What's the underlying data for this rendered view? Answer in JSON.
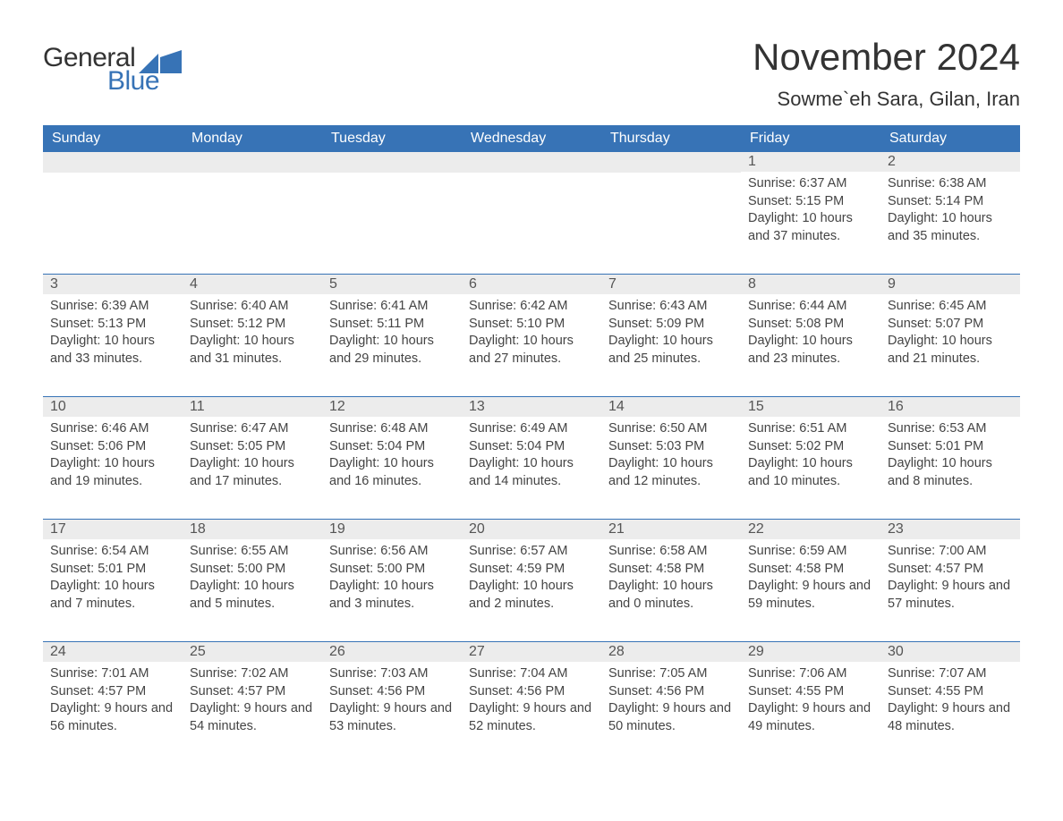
{
  "logo": {
    "text_general": "General",
    "text_blue": "Blue",
    "shape_color": "#3773b6"
  },
  "title": {
    "month": "November 2024",
    "location": "Sowme`eh Sara, Gilan, Iran",
    "month_fontsize": 42,
    "location_fontsize": 22,
    "text_color": "#333333"
  },
  "calendar": {
    "header_bg": "#3773b6",
    "header_text_color": "#ffffff",
    "separator_color": "#3773b6",
    "daynum_bg": "#ececec",
    "day_headers": [
      "Sunday",
      "Monday",
      "Tuesday",
      "Wednesday",
      "Thursday",
      "Friday",
      "Saturday"
    ],
    "weeks": [
      [
        {
          "num": "",
          "sunrise": "",
          "sunset": "",
          "daylight": ""
        },
        {
          "num": "",
          "sunrise": "",
          "sunset": "",
          "daylight": ""
        },
        {
          "num": "",
          "sunrise": "",
          "sunset": "",
          "daylight": ""
        },
        {
          "num": "",
          "sunrise": "",
          "sunset": "",
          "daylight": ""
        },
        {
          "num": "",
          "sunrise": "",
          "sunset": "",
          "daylight": ""
        },
        {
          "num": "1",
          "sunrise": "Sunrise: 6:37 AM",
          "sunset": "Sunset: 5:15 PM",
          "daylight": "Daylight: 10 hours and 37 minutes."
        },
        {
          "num": "2",
          "sunrise": "Sunrise: 6:38 AM",
          "sunset": "Sunset: 5:14 PM",
          "daylight": "Daylight: 10 hours and 35 minutes."
        }
      ],
      [
        {
          "num": "3",
          "sunrise": "Sunrise: 6:39 AM",
          "sunset": "Sunset: 5:13 PM",
          "daylight": "Daylight: 10 hours and 33 minutes."
        },
        {
          "num": "4",
          "sunrise": "Sunrise: 6:40 AM",
          "sunset": "Sunset: 5:12 PM",
          "daylight": "Daylight: 10 hours and 31 minutes."
        },
        {
          "num": "5",
          "sunrise": "Sunrise: 6:41 AM",
          "sunset": "Sunset: 5:11 PM",
          "daylight": "Daylight: 10 hours and 29 minutes."
        },
        {
          "num": "6",
          "sunrise": "Sunrise: 6:42 AM",
          "sunset": "Sunset: 5:10 PM",
          "daylight": "Daylight: 10 hours and 27 minutes."
        },
        {
          "num": "7",
          "sunrise": "Sunrise: 6:43 AM",
          "sunset": "Sunset: 5:09 PM",
          "daylight": "Daylight: 10 hours and 25 minutes."
        },
        {
          "num": "8",
          "sunrise": "Sunrise: 6:44 AM",
          "sunset": "Sunset: 5:08 PM",
          "daylight": "Daylight: 10 hours and 23 minutes."
        },
        {
          "num": "9",
          "sunrise": "Sunrise: 6:45 AM",
          "sunset": "Sunset: 5:07 PM",
          "daylight": "Daylight: 10 hours and 21 minutes."
        }
      ],
      [
        {
          "num": "10",
          "sunrise": "Sunrise: 6:46 AM",
          "sunset": "Sunset: 5:06 PM",
          "daylight": "Daylight: 10 hours and 19 minutes."
        },
        {
          "num": "11",
          "sunrise": "Sunrise: 6:47 AM",
          "sunset": "Sunset: 5:05 PM",
          "daylight": "Daylight: 10 hours and 17 minutes."
        },
        {
          "num": "12",
          "sunrise": "Sunrise: 6:48 AM",
          "sunset": "Sunset: 5:04 PM",
          "daylight": "Daylight: 10 hours and 16 minutes."
        },
        {
          "num": "13",
          "sunrise": "Sunrise: 6:49 AM",
          "sunset": "Sunset: 5:04 PM",
          "daylight": "Daylight: 10 hours and 14 minutes."
        },
        {
          "num": "14",
          "sunrise": "Sunrise: 6:50 AM",
          "sunset": "Sunset: 5:03 PM",
          "daylight": "Daylight: 10 hours and 12 minutes."
        },
        {
          "num": "15",
          "sunrise": "Sunrise: 6:51 AM",
          "sunset": "Sunset: 5:02 PM",
          "daylight": "Daylight: 10 hours and 10 minutes."
        },
        {
          "num": "16",
          "sunrise": "Sunrise: 6:53 AM",
          "sunset": "Sunset: 5:01 PM",
          "daylight": "Daylight: 10 hours and 8 minutes."
        }
      ],
      [
        {
          "num": "17",
          "sunrise": "Sunrise: 6:54 AM",
          "sunset": "Sunset: 5:01 PM",
          "daylight": "Daylight: 10 hours and 7 minutes."
        },
        {
          "num": "18",
          "sunrise": "Sunrise: 6:55 AM",
          "sunset": "Sunset: 5:00 PM",
          "daylight": "Daylight: 10 hours and 5 minutes."
        },
        {
          "num": "19",
          "sunrise": "Sunrise: 6:56 AM",
          "sunset": "Sunset: 5:00 PM",
          "daylight": "Daylight: 10 hours and 3 minutes."
        },
        {
          "num": "20",
          "sunrise": "Sunrise: 6:57 AM",
          "sunset": "Sunset: 4:59 PM",
          "daylight": "Daylight: 10 hours and 2 minutes."
        },
        {
          "num": "21",
          "sunrise": "Sunrise: 6:58 AM",
          "sunset": "Sunset: 4:58 PM",
          "daylight": "Daylight: 10 hours and 0 minutes."
        },
        {
          "num": "22",
          "sunrise": "Sunrise: 6:59 AM",
          "sunset": "Sunset: 4:58 PM",
          "daylight": "Daylight: 9 hours and 59 minutes."
        },
        {
          "num": "23",
          "sunrise": "Sunrise: 7:00 AM",
          "sunset": "Sunset: 4:57 PM",
          "daylight": "Daylight: 9 hours and 57 minutes."
        }
      ],
      [
        {
          "num": "24",
          "sunrise": "Sunrise: 7:01 AM",
          "sunset": "Sunset: 4:57 PM",
          "daylight": "Daylight: 9 hours and 56 minutes."
        },
        {
          "num": "25",
          "sunrise": "Sunrise: 7:02 AM",
          "sunset": "Sunset: 4:57 PM",
          "daylight": "Daylight: 9 hours and 54 minutes."
        },
        {
          "num": "26",
          "sunrise": "Sunrise: 7:03 AM",
          "sunset": "Sunset: 4:56 PM",
          "daylight": "Daylight: 9 hours and 53 minutes."
        },
        {
          "num": "27",
          "sunrise": "Sunrise: 7:04 AM",
          "sunset": "Sunset: 4:56 PM",
          "daylight": "Daylight: 9 hours and 52 minutes."
        },
        {
          "num": "28",
          "sunrise": "Sunrise: 7:05 AM",
          "sunset": "Sunset: 4:56 PM",
          "daylight": "Daylight: 9 hours and 50 minutes."
        },
        {
          "num": "29",
          "sunrise": "Sunrise: 7:06 AM",
          "sunset": "Sunset: 4:55 PM",
          "daylight": "Daylight: 9 hours and 49 minutes."
        },
        {
          "num": "30",
          "sunrise": "Sunrise: 7:07 AM",
          "sunset": "Sunset: 4:55 PM",
          "daylight": "Daylight: 9 hours and 48 minutes."
        }
      ]
    ]
  }
}
